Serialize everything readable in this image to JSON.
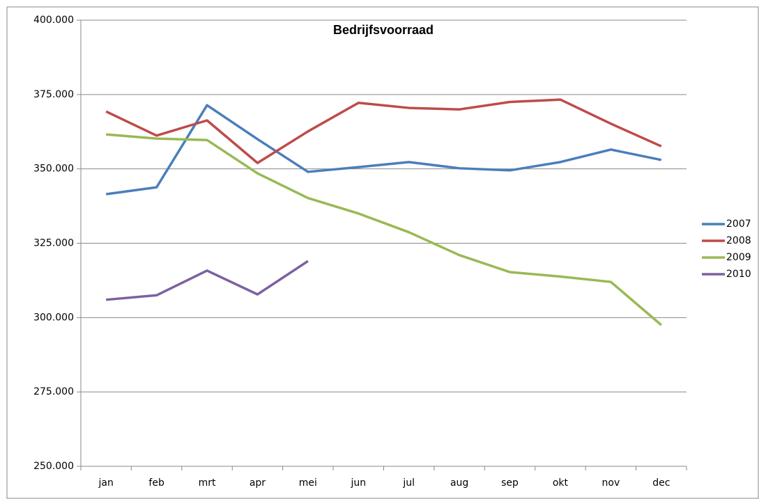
{
  "chart_data": {
    "type": "line",
    "title": "Bedrijfsvoorraad",
    "categories": [
      "jan",
      "feb",
      "mrt",
      "apr",
      "mei",
      "jun",
      "jul",
      "aug",
      "sep",
      "okt",
      "nov",
      "dec"
    ],
    "series": [
      {
        "name": "2007",
        "color": "#4a7ebb",
        "values": [
          341500,
          343800,
          371400,
          360000,
          349000,
          350600,
          352300,
          350200,
          349500,
          352300,
          356500,
          353000
        ]
      },
      {
        "name": "2008",
        "color": "#be4b48",
        "values": [
          369300,
          361200,
          366300,
          352000,
          362600,
          372200,
          370500,
          370000,
          372500,
          373300,
          365200,
          357600
        ]
      },
      {
        "name": "2009",
        "color": "#98b954",
        "values": [
          361600,
          360200,
          359700,
          348500,
          340200,
          335000,
          328700,
          321000,
          315300,
          313800,
          312000,
          297500
        ]
      },
      {
        "name": "2010",
        "color": "#7d60a0",
        "values": [
          306000,
          307500,
          315800,
          307800,
          319000,
          null,
          null,
          null,
          null,
          null,
          null,
          null
        ]
      }
    ],
    "ylim": [
      250000,
      400000
    ],
    "yticks": [
      {
        "value": 250000,
        "label": "250.000"
      },
      {
        "value": 275000,
        "label": "275.000"
      },
      {
        "value": 300000,
        "label": "300.000"
      },
      {
        "value": 325000,
        "label": "325.000"
      },
      {
        "value": 350000,
        "label": "350.000"
      },
      {
        "value": 375000,
        "label": "375.000"
      },
      {
        "value": 400000,
        "label": "400.000"
      }
    ],
    "grid": true,
    "legend": "right"
  }
}
